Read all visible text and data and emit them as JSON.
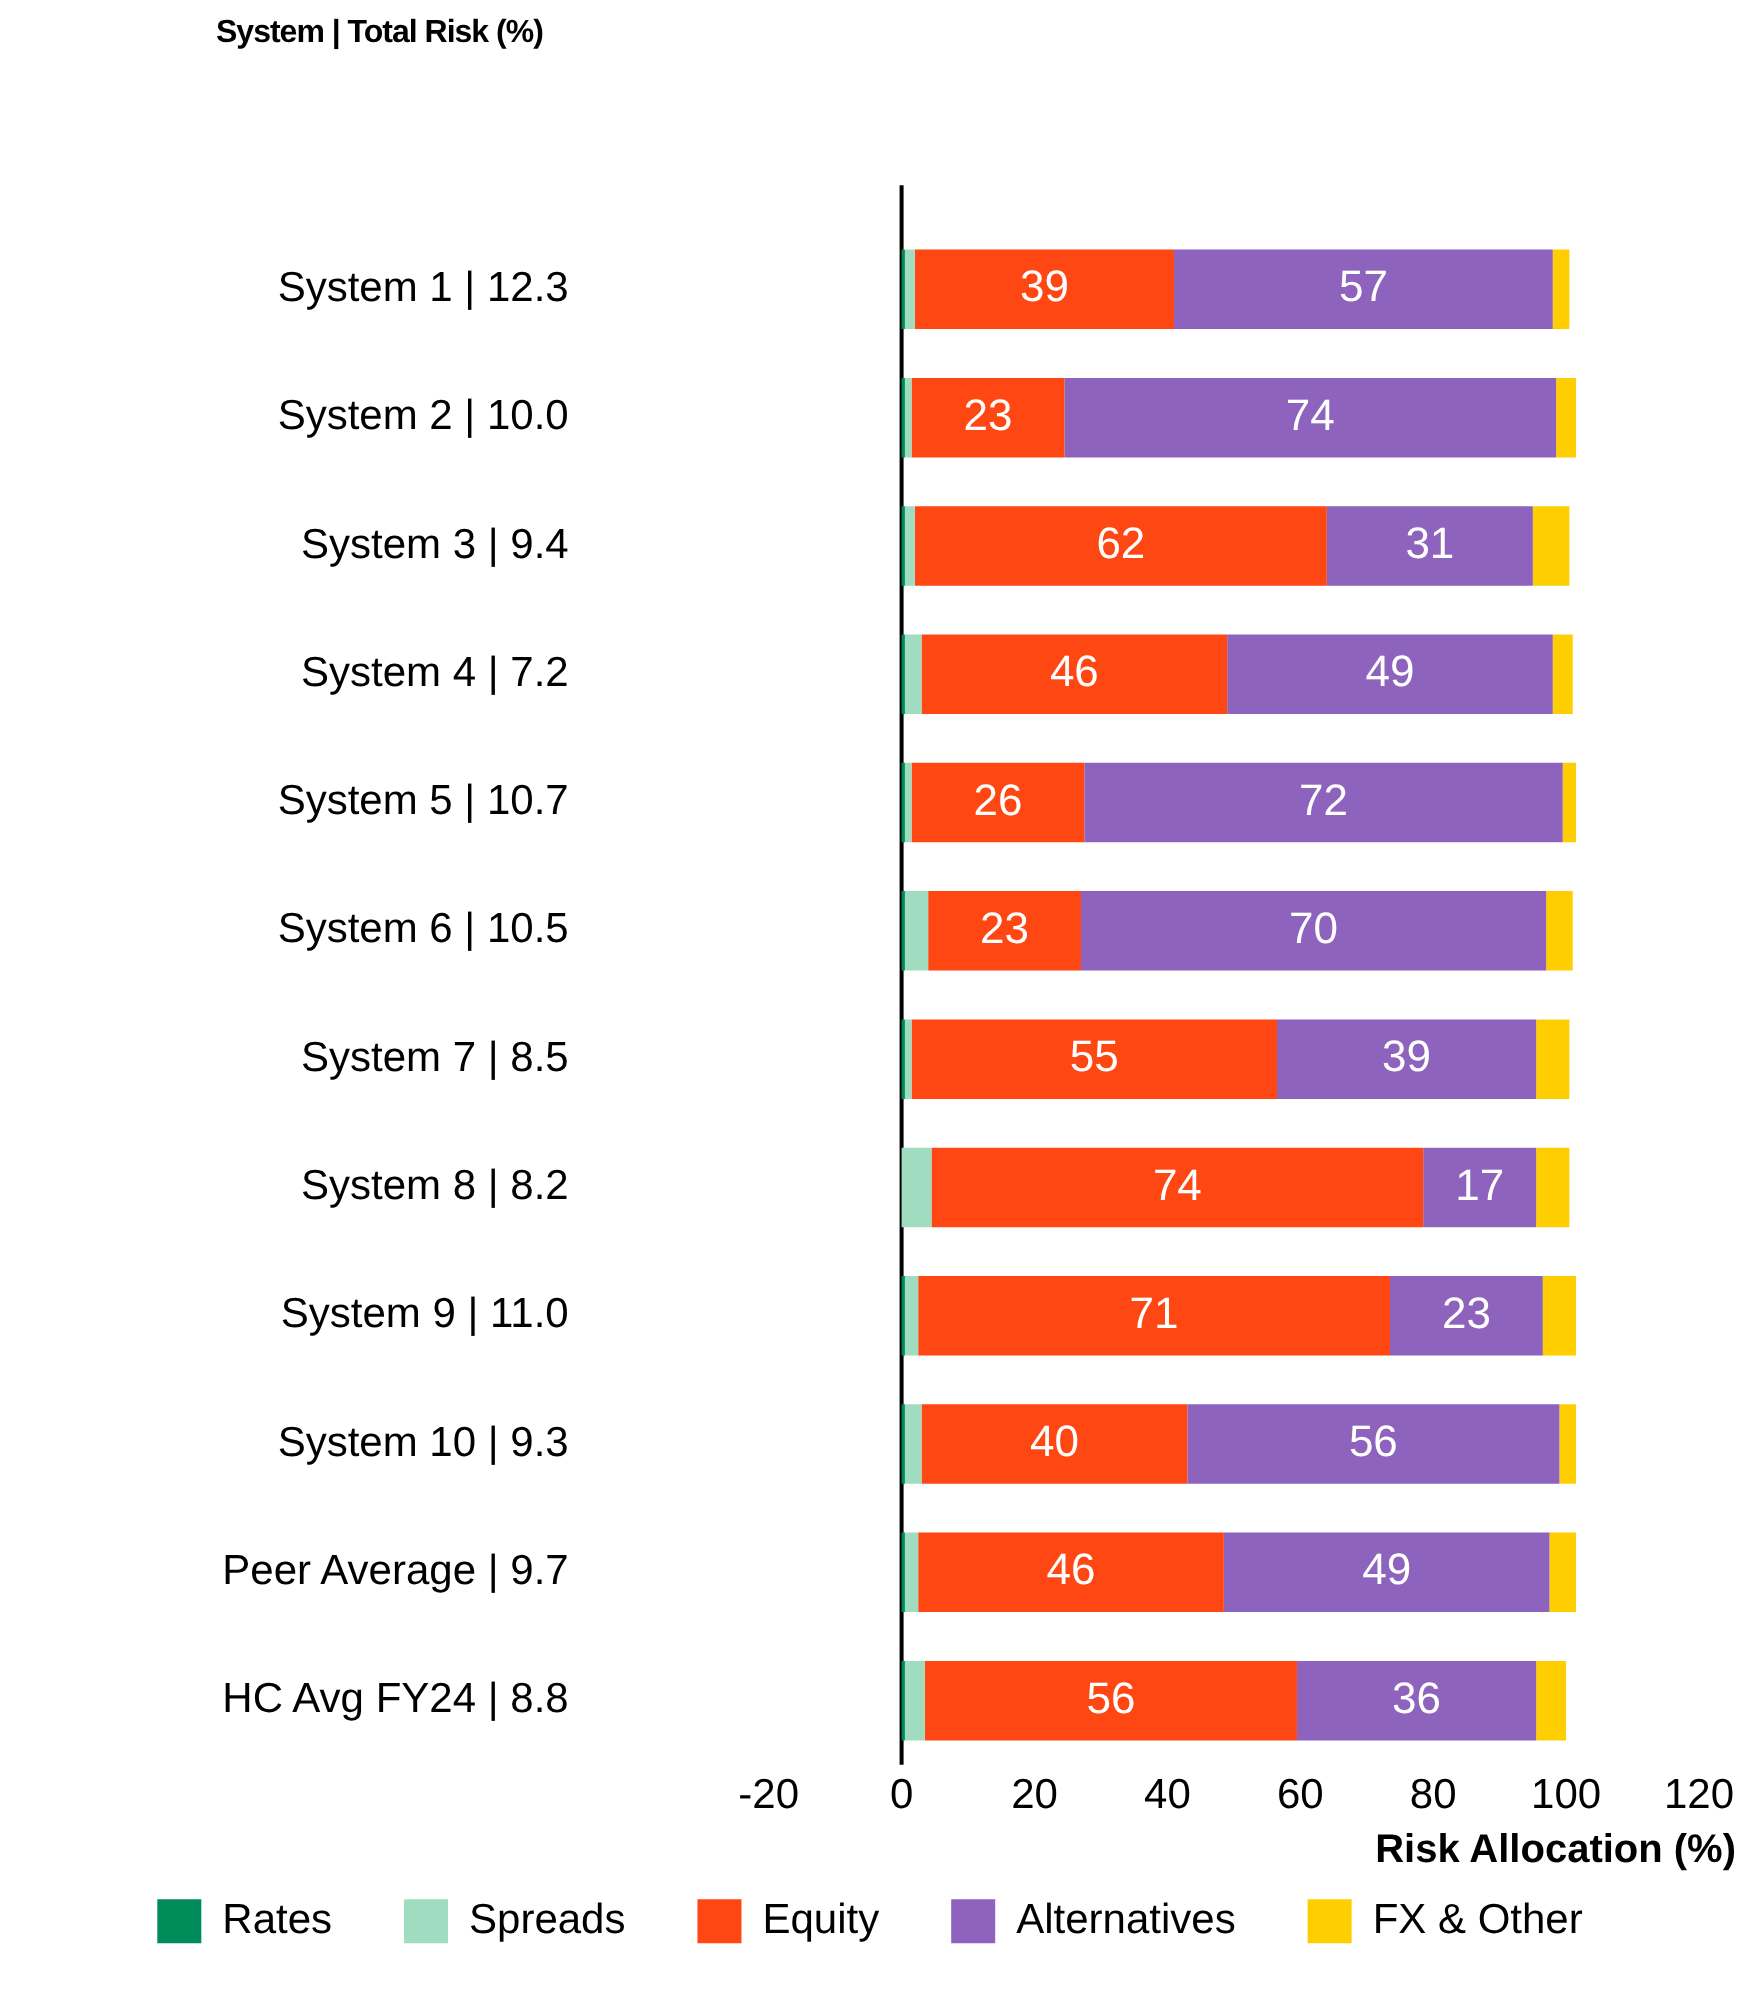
{
  "chart_data": {
    "type": "bar",
    "orientation": "horizontal",
    "stacked": true,
    "title": "System | Total Risk (%)",
    "xlabel": "Risk Allocation (%)",
    "categories": [
      "System 1 | 12.3",
      "System 2 | 10.0",
      "System 3 | 9.4",
      "System 4 | 7.2",
      "System 5 | 10.7",
      "System 6 | 10.5",
      "System 7 | 8.5",
      "System 8 | 8.2",
      "System 9 | 11.0",
      "System 10 | 9.3",
      "Peer Average | 9.7",
      "HC Avg FY24 | 8.8"
    ],
    "series": [
      {
        "name": "Rates",
        "color": "#008c5a",
        "values": [
          0.5,
          0.5,
          0.5,
          0.5,
          0.5,
          0.5,
          0.5,
          0,
          0.5,
          0.5,
          0.5,
          0.5
        ]
      },
      {
        "name": "Spreads",
        "color": "#a0dcc0",
        "values": [
          1.5,
          1,
          1.5,
          2.5,
          1,
          3.5,
          1,
          4.5,
          2,
          2.5,
          2,
          3
        ]
      },
      {
        "name": "Equity",
        "color": "#ff4713",
        "values": [
          39,
          23,
          62,
          46,
          26,
          23,
          55,
          74,
          71,
          40,
          46,
          56
        ],
        "value_labels": [
          "39",
          "23",
          "62",
          "46",
          "26",
          "23",
          "55",
          "74",
          "71",
          "40",
          "46",
          "56"
        ]
      },
      {
        "name": "Alternatives",
        "color": "#8e63be",
        "values": [
          57,
          74,
          31,
          49,
          72,
          70,
          39,
          17,
          23,
          56,
          49,
          36
        ],
        "value_labels": [
          "57",
          "74",
          "31",
          "49",
          "72",
          "70",
          "39",
          "17",
          "23",
          "56",
          "49",
          "36"
        ]
      },
      {
        "name": "FX & Other",
        "color": "#ffce00",
        "values": [
          2.5,
          3,
          5.5,
          3,
          2,
          4,
          5,
          5,
          5,
          2.5,
          4,
          4.5
        ]
      }
    ],
    "xlim": [
      -20,
      120
    ],
    "xticks": [
      -20,
      0,
      20,
      40,
      60,
      80,
      100,
      120
    ],
    "grid": false,
    "legend": "bottom",
    "ref_lines": [
      {
        "axis": "x",
        "value": 0,
        "color": "#000000"
      }
    ]
  }
}
